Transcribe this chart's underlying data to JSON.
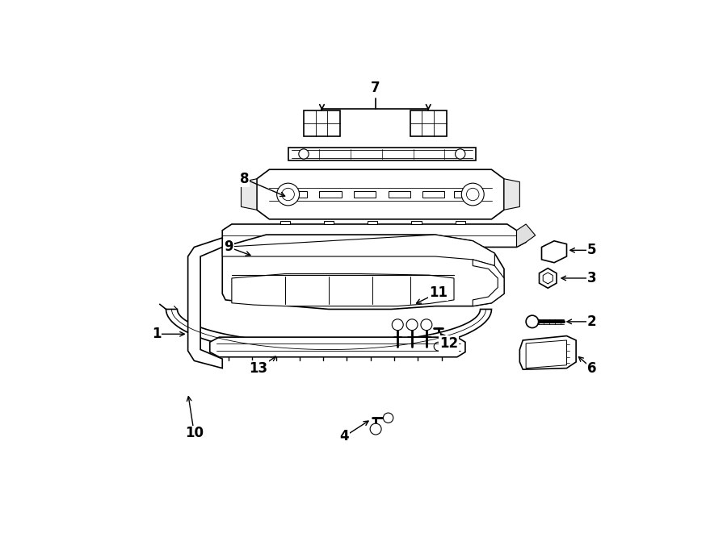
{
  "bg_color": "#ffffff",
  "line_color": "#000000",
  "fig_width": 9.0,
  "fig_height": 6.61,
  "label_configs": {
    "1": {
      "lpos": [
        0.115,
        0.435
      ],
      "apos": [
        0.155,
        0.435
      ]
    },
    "2": {
      "lpos": [
        0.845,
        0.415
      ],
      "apos": [
        0.79,
        0.415
      ]
    },
    "3": {
      "lpos": [
        0.845,
        0.52
      ],
      "apos": [
        0.78,
        0.52
      ]
    },
    "4": {
      "lpos": [
        0.415,
        0.085
      ],
      "apos": [
        0.445,
        0.1
      ]
    },
    "5": {
      "lpos": [
        0.845,
        0.47
      ],
      "apos": [
        0.785,
        0.475
      ]
    },
    "6": {
      "lpos": [
        0.845,
        0.37
      ],
      "apos": [
        0.775,
        0.375
      ]
    },
    "7": {
      "lpos": [
        0.455,
        0.925
      ],
      "apos": [
        0.455,
        0.905
      ]
    },
    "8": {
      "lpos": [
        0.255,
        0.76
      ],
      "apos": [
        0.31,
        0.735
      ]
    },
    "9": {
      "lpos": [
        0.235,
        0.655
      ],
      "apos": [
        0.285,
        0.625
      ]
    },
    "10": {
      "lpos": [
        0.165,
        0.125
      ],
      "apos": [
        0.195,
        0.195
      ]
    },
    "11": {
      "lpos": [
        0.548,
        0.31
      ],
      "apos": [
        0.52,
        0.295
      ]
    },
    "12": {
      "lpos": [
        0.582,
        0.155
      ],
      "apos": [
        0.555,
        0.205
      ]
    },
    "13": {
      "lpos": [
        0.285,
        0.255
      ],
      "apos": [
        0.32,
        0.28
      ]
    }
  }
}
